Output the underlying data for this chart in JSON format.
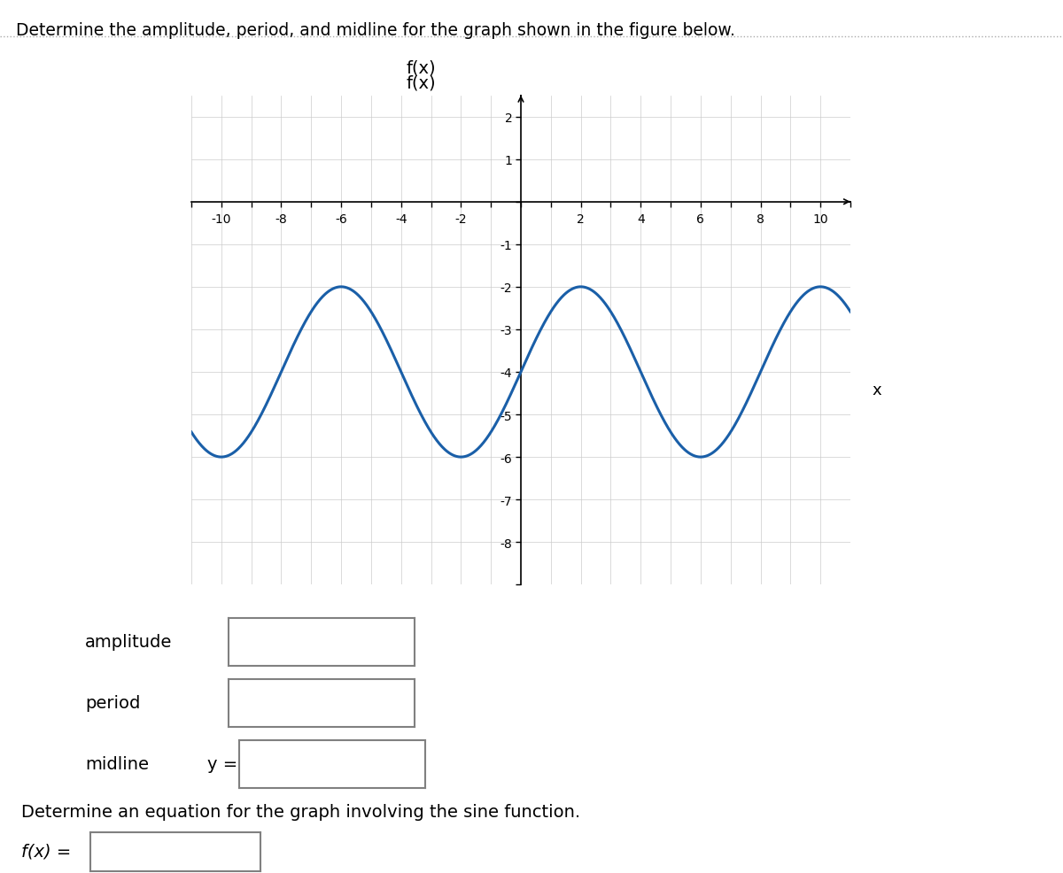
{
  "title_main": "Determine the amplitude, period, and midline for the graph shown in the figure below.",
  "graph_title": "f(x)",
  "x_label": "x",
  "xlim": [
    -11,
    11
  ],
  "ylim": [
    -8.5,
    2.5
  ],
  "x_ticks": [
    -10,
    -8,
    -6,
    -4,
    -2,
    2,
    4,
    6,
    8,
    10
  ],
  "y_ticks": [
    -8,
    -7,
    -6,
    -5,
    -4,
    -3,
    -2,
    -1,
    1,
    2
  ],
  "amplitude": 2,
  "period": 8,
  "midline": -4,
  "phase_shift": 0,
  "curve_color": "#1a5fa8",
  "curve_linewidth": 2.2,
  "grid_color": "#cccccc",
  "grid_linewidth": 0.5,
  "background_color": "#ffffff",
  "label_amplitude": "amplitude",
  "label_period": "period",
  "label_midline": "midline",
  "label_y_eq": "y =",
  "label_determine": "Determine an equation for the graph involving the sine function.",
  "label_fx_eq": "f(x) =",
  "top_title_dotted_line": true
}
